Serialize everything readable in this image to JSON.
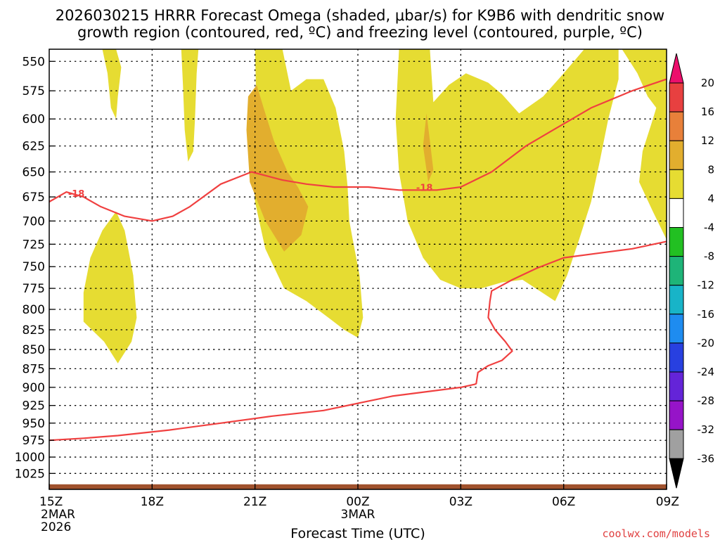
{
  "chart_data": {
    "type": "heatmap",
    "title_line1": "2026030215 HRRR Forecast Omega (shaded, μbar/s) for K9B6 with dendritic snow",
    "title_line2": "growth region (contoured, red, ºC) and freezing level (contoured, purple, ºC)",
    "xlabel": "Forecast Time (UTC)",
    "x_range": [
      0,
      18
    ],
    "x_ticks": [
      {
        "t": 0,
        "label": "15Z",
        "sub1": "2MAR",
        "sub2": "2026"
      },
      {
        "t": 3,
        "label": "18Z",
        "sub1": "",
        "sub2": ""
      },
      {
        "t": 6,
        "label": "21Z",
        "sub1": "",
        "sub2": ""
      },
      {
        "t": 9,
        "label": "00Z",
        "sub1": "3MAR",
        "sub2": ""
      },
      {
        "t": 12,
        "label": "03Z",
        "sub1": "",
        "sub2": ""
      },
      {
        "t": 15,
        "label": "06Z",
        "sub1": "",
        "sub2": ""
      },
      {
        "t": 18,
        "label": "09Z",
        "sub1": "",
        "sub2": ""
      }
    ],
    "y_range_hPa": [
      540,
      1050
    ],
    "y_ticks": [
      {
        "p": 550,
        "label": "550"
      },
      {
        "p": 575,
        "label": "575"
      },
      {
        "p": 600,
        "label": "600"
      },
      {
        "p": 625,
        "label": "625"
      },
      {
        "p": 650,
        "label": "650"
      },
      {
        "p": 675,
        "label": "675"
      },
      {
        "p": 700,
        "label": "700"
      },
      {
        "p": 725,
        "label": "725"
      },
      {
        "p": 750,
        "label": "750"
      },
      {
        "p": 775,
        "label": "775"
      },
      {
        "p": 800,
        "label": "800"
      },
      {
        "p": 825,
        "label": "825"
      },
      {
        "p": 850,
        "label": "850"
      },
      {
        "p": 875,
        "label": "875"
      },
      {
        "p": 900,
        "label": "900"
      },
      {
        "p": 925,
        "label": "925"
      },
      {
        "p": 950,
        "label": "950"
      },
      {
        "p": 975,
        "label": "975"
      },
      {
        "p": 1000,
        "label": "1000"
      },
      {
        "p": 1025,
        "label": "1025"
      }
    ],
    "grid": "dotted",
    "omega_shading": [
      {
        "name": "region-a",
        "level": 4,
        "color": "#e6dc32",
        "points": [
          [
            1.55,
            540
          ],
          [
            1.95,
            540
          ],
          [
            2.1,
            555
          ],
          [
            2.0,
            580
          ],
          [
            1.95,
            600
          ],
          [
            1.8,
            590
          ],
          [
            1.7,
            560
          ]
        ]
      },
      {
        "name": "region-b",
        "level": 4,
        "color": "#e6dc32",
        "points": [
          [
            3.85,
            540
          ],
          [
            4.35,
            540
          ],
          [
            4.3,
            560
          ],
          [
            4.25,
            600
          ],
          [
            4.2,
            630
          ],
          [
            4.05,
            640
          ],
          [
            3.95,
            610
          ],
          [
            3.9,
            570
          ]
        ]
      },
      {
        "name": "region-c",
        "level": 4,
        "color": "#e6dc32",
        "points": [
          [
            6.0,
            540
          ],
          [
            6.8,
            540
          ],
          [
            7.05,
            575
          ],
          [
            7.5,
            565
          ],
          [
            8.0,
            565
          ],
          [
            8.35,
            590
          ],
          [
            8.6,
            630
          ],
          [
            8.7,
            665
          ],
          [
            8.75,
            700
          ],
          [
            8.85,
            720
          ],
          [
            9.05,
            760
          ],
          [
            9.15,
            810
          ],
          [
            9.0,
            835
          ],
          [
            8.6,
            825
          ],
          [
            8.2,
            812
          ],
          [
            7.5,
            790
          ],
          [
            6.85,
            775
          ],
          [
            6.3,
            730
          ],
          [
            6.0,
            680
          ],
          [
            5.95,
            640
          ],
          [
            6.05,
            600
          ]
        ]
      },
      {
        "name": "region-d",
        "level": 4,
        "color": "#e6dc32",
        "points": [
          [
            10.2,
            540
          ],
          [
            11.1,
            540
          ],
          [
            11.2,
            585
          ],
          [
            11.65,
            570
          ],
          [
            12.15,
            560
          ],
          [
            12.8,
            568
          ],
          [
            13.2,
            578
          ],
          [
            13.7,
            595
          ],
          [
            14.4,
            580
          ],
          [
            15.0,
            560
          ],
          [
            15.6,
            540
          ],
          [
            16.6,
            540
          ],
          [
            16.6,
            565
          ],
          [
            16.3,
            600
          ],
          [
            16.05,
            640
          ],
          [
            15.8,
            680
          ],
          [
            15.45,
            720
          ],
          [
            15.1,
            760
          ],
          [
            14.75,
            790
          ],
          [
            14.3,
            778
          ],
          [
            13.8,
            765
          ],
          [
            13.2,
            768
          ],
          [
            12.6,
            775
          ],
          [
            12.0,
            775
          ],
          [
            11.4,
            765
          ],
          [
            10.9,
            740
          ],
          [
            10.45,
            700
          ],
          [
            10.2,
            650
          ],
          [
            10.1,
            600
          ]
        ]
      },
      {
        "name": "region-e",
        "level": 4,
        "color": "#e6dc32",
        "points": [
          [
            16.7,
            540
          ],
          [
            17.15,
            560
          ],
          [
            17.45,
            580
          ],
          [
            17.7,
            590
          ],
          [
            17.55,
            605
          ],
          [
            17.3,
            630
          ],
          [
            17.2,
            660
          ],
          [
            17.6,
            690
          ],
          [
            18.0,
            720
          ],
          [
            18.0,
            540
          ]
        ]
      },
      {
        "name": "region-f",
        "level": 4,
        "color": "#e6dc32",
        "points": [
          [
            17.55,
            540
          ],
          [
            17.85,
            540
          ],
          [
            17.75,
            600
          ],
          [
            17.65,
            580
          ]
        ]
      },
      {
        "name": "region-g",
        "level": 4,
        "color": "#e6dc32",
        "points": [
          [
            1.95,
            690
          ],
          [
            2.2,
            710
          ],
          [
            2.45,
            760
          ],
          [
            2.55,
            810
          ],
          [
            2.4,
            840
          ],
          [
            2.0,
            868
          ],
          [
            1.6,
            840
          ],
          [
            1.0,
            815
          ],
          [
            1.0,
            780
          ],
          [
            1.2,
            740
          ],
          [
            1.55,
            710
          ]
        ]
      },
      {
        "name": "core-c",
        "level": 8,
        "color": "#e2ae2e",
        "points": [
          [
            6.05,
            570
          ],
          [
            6.25,
            590
          ],
          [
            6.55,
            620
          ],
          [
            6.95,
            650
          ],
          [
            7.25,
            665
          ],
          [
            7.55,
            685
          ],
          [
            7.35,
            715
          ],
          [
            6.85,
            733
          ],
          [
            6.3,
            700
          ],
          [
            5.85,
            660
          ],
          [
            5.75,
            610
          ],
          [
            5.8,
            580
          ]
        ]
      },
      {
        "name": "core-d",
        "level": 8,
        "color": "#e2ae2e",
        "points": [
          [
            11.0,
            595
          ],
          [
            11.1,
            620
          ],
          [
            11.2,
            648
          ],
          [
            11.05,
            660
          ],
          [
            10.9,
            625
          ]
        ]
      }
    ],
    "contours": [
      {
        "name": "dendritic-18C",
        "label": "-18",
        "color": "#f04040",
        "points": [
          [
            0.0,
            680
          ],
          [
            0.5,
            670
          ],
          [
            1.0,
            675
          ],
          [
            1.5,
            685
          ],
          [
            2.2,
            695
          ],
          [
            3.0,
            700
          ],
          [
            3.6,
            695
          ],
          [
            4.1,
            685
          ],
          [
            5.0,
            662
          ],
          [
            5.9,
            650
          ],
          [
            6.8,
            658
          ],
          [
            7.5,
            662
          ],
          [
            8.3,
            665
          ],
          [
            9.3,
            665
          ],
          [
            10.2,
            668
          ],
          [
            11.3,
            668
          ],
          [
            12.0,
            665
          ],
          [
            12.9,
            650
          ],
          [
            13.9,
            625
          ],
          [
            14.7,
            610
          ],
          [
            15.8,
            590
          ],
          [
            17.0,
            575
          ],
          [
            18.0,
            565
          ]
        ]
      },
      {
        "name": "freezing-level",
        "label": "",
        "color": "#f04040",
        "points": [
          [
            0.0,
            975
          ],
          [
            1.0,
            972
          ],
          [
            2.0,
            968
          ],
          [
            3.5,
            960
          ],
          [
            5.0,
            950
          ],
          [
            6.5,
            940
          ],
          [
            8.0,
            932
          ],
          [
            9.0,
            922
          ],
          [
            10.0,
            912
          ],
          [
            11.0,
            906
          ],
          [
            12.0,
            900
          ],
          [
            12.4,
            896
          ],
          [
            12.45,
            895
          ],
          [
            12.5,
            880
          ],
          [
            12.8,
            871
          ],
          [
            13.2,
            864
          ],
          [
            13.5,
            852
          ],
          [
            13.3,
            840
          ],
          [
            13.0,
            825
          ],
          [
            12.8,
            810
          ],
          [
            12.85,
            790
          ],
          [
            12.9,
            778
          ],
          [
            13.5,
            765
          ],
          [
            14.2,
            752
          ],
          [
            15.0,
            740
          ],
          [
            16.0,
            735
          ],
          [
            17.0,
            730
          ],
          [
            18.0,
            722
          ]
        ]
      }
    ],
    "colorbar": {
      "label_color": "#000000",
      "bands": [
        {
          "color": "#ec0f6c",
          "from": 20,
          "to": null
        },
        {
          "color": "#e84040",
          "from": 16,
          "to": 20
        },
        {
          "color": "#e8803a",
          "from": 12,
          "to": 16
        },
        {
          "color": "#e2ae2e",
          "from": 8,
          "to": 12
        },
        {
          "color": "#e6dc32",
          "from": 4,
          "to": 8
        },
        {
          "color": "#ffffff",
          "from": -4,
          "to": 4
        },
        {
          "color": "#22c022",
          "from": -8,
          "to": -4
        },
        {
          "color": "#1eb478",
          "from": -12,
          "to": -8
        },
        {
          "color": "#18b4c8",
          "from": -16,
          "to": -12
        },
        {
          "color": "#1e8cf0",
          "from": -20,
          "to": -16
        },
        {
          "color": "#2840e0",
          "from": -24,
          "to": -20
        },
        {
          "color": "#6424d8",
          "from": -28,
          "to": -24
        },
        {
          "color": "#9614c8",
          "from": -32,
          "to": -28
        },
        {
          "color": "#a0a0a0",
          "from": -36,
          "to": -32
        },
        {
          "color": "#000000",
          "from": null,
          "to": -36
        }
      ],
      "tick_labels": [
        "20",
        "16",
        "12",
        "8",
        "4",
        "-4",
        "-8",
        "-12",
        "-16",
        "-20",
        "-24",
        "-28",
        "-32",
        "-36"
      ]
    },
    "terrain_color": "#a0522d",
    "terrain_pressure_hPa": 1042
  },
  "watermark": "coolwx.com/models"
}
